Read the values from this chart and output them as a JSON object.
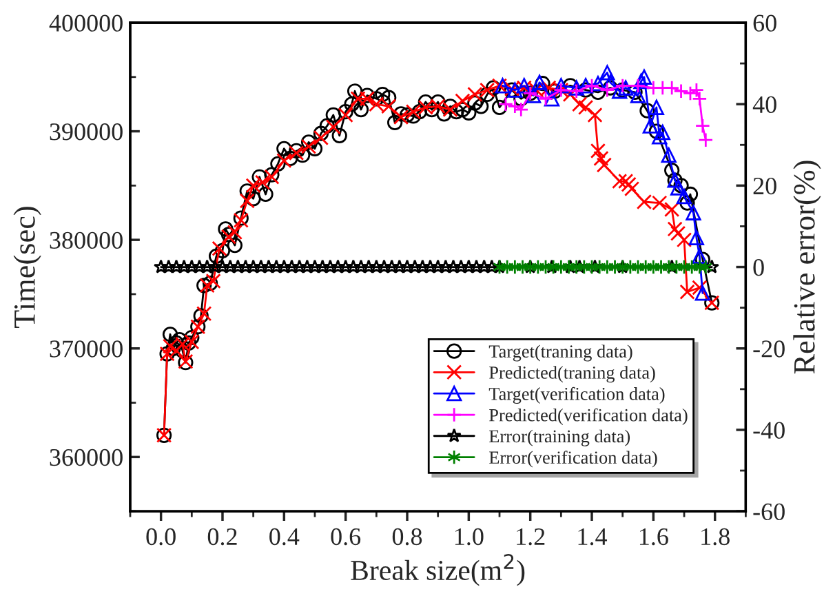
{
  "chart_data": {
    "type": "line",
    "xlabel": "Break size(m$^{2}$)",
    "ylabel": "Time(sec)",
    "y2label": "Relative error(%)",
    "xlim": [
      -0.1,
      1.9
    ],
    "xticks": [
      {
        "value": 0,
        "label": "0.0"
      },
      0.2,
      0.4,
      0.6,
      0.8,
      {
        "value": 1,
        "label": "1.0"
      },
      1.2,
      1.4,
      1.6,
      1.8
    ],
    "ylim": [
      355000,
      400000
    ],
    "yticks": [
      360000,
      370000,
      380000,
      390000,
      400000
    ],
    "y2lim": [
      -60,
      60
    ],
    "y2ticks": [
      -60,
      -40,
      -20,
      0,
      20,
      40,
      60
    ],
    "grid": false,
    "legend": "bottom right",
    "series": [
      {
        "name": "Target(traning data)",
        "color": "#000000",
        "marker": "circle",
        "x": [
          0.01,
          0.02,
          0.03,
          0.04,
          0.05,
          0.06,
          0.07,
          0.08,
          0.09,
          0.1,
          0.12,
          0.13,
          0.14,
          0.16,
          0.18,
          0.2,
          0.21,
          0.22,
          0.24,
          0.26,
          0.28,
          0.3,
          0.32,
          0.34,
          0.36,
          0.38,
          0.4,
          0.42,
          0.44,
          0.46,
          0.48,
          0.5,
          0.52,
          0.54,
          0.56,
          0.58,
          0.6,
          0.62,
          0.63,
          0.65,
          0.67,
          0.7,
          0.72,
          0.74,
          0.76,
          0.78,
          0.8,
          0.82,
          0.84,
          0.86,
          0.88,
          0.9,
          0.92,
          0.94,
          0.96,
          0.98,
          1.0,
          1.02,
          1.04,
          1.06,
          1.08,
          1.1,
          1.14,
          1.17,
          1.2,
          1.24,
          1.28,
          1.33,
          1.38,
          1.42,
          1.46,
          1.5,
          1.54,
          1.58,
          1.61,
          1.66,
          1.67,
          1.69,
          1.71,
          1.72,
          1.76,
          1.79
        ],
        "values": [
          362000,
          369500,
          371300,
          370000,
          370500,
          370800,
          369800,
          368700,
          370500,
          371000,
          372000,
          373000,
          375800,
          376000,
          378500,
          379000,
          381000,
          380500,
          379500,
          382000,
          384500,
          383800,
          385800,
          384200,
          386000,
          387000,
          388400,
          387500,
          388200,
          387800,
          389000,
          388400,
          389800,
          390500,
          391500,
          389600,
          391800,
          392500,
          393700,
          392000,
          393300,
          393000,
          393400,
          393100,
          390800,
          391600,
          391500,
          391400,
          391800,
          392700,
          392000,
          392700,
          391600,
          392300,
          391800,
          392000,
          391700,
          392600,
          392300,
          393400,
          394000,
          392200,
          393800,
          393000,
          393500,
          394400,
          393700,
          394200,
          393800,
          393600,
          394000,
          393800,
          393600,
          391900,
          390000,
          386400,
          385500,
          385000,
          383400,
          384200,
          378200,
          374200
        ]
      },
      {
        "name": "Predicted(traning data)",
        "color": "#ff0000",
        "marker": "x",
        "x": [
          0.01,
          0.02,
          0.03,
          0.05,
          0.07,
          0.08,
          0.1,
          0.12,
          0.14,
          0.15,
          0.17,
          0.19,
          0.22,
          0.24,
          0.26,
          0.28,
          0.3,
          0.33,
          0.36,
          0.4,
          0.44,
          0.48,
          0.52,
          0.56,
          0.6,
          0.64,
          0.67,
          0.7,
          0.74,
          0.78,
          0.82,
          0.86,
          0.9,
          0.94,
          0.98,
          1.02,
          1.06,
          1.1,
          1.14,
          1.18,
          1.22,
          1.26,
          1.3,
          1.33,
          1.36,
          1.38,
          1.41,
          1.42,
          1.43,
          1.44,
          1.49,
          1.51,
          1.52,
          1.53,
          1.57,
          1.62,
          1.66,
          1.67,
          1.68,
          1.7,
          1.71,
          1.75,
          1.79
        ],
        "values": [
          362000,
          369500,
          370200,
          369800,
          370400,
          368800,
          370600,
          372000,
          373200,
          375800,
          376200,
          379200,
          380300,
          380700,
          381800,
          383600,
          385000,
          385300,
          385800,
          387300,
          388000,
          388600,
          389400,
          390400,
          391500,
          393000,
          393000,
          392500,
          392300,
          391300,
          391800,
          392200,
          392300,
          392000,
          392800,
          393400,
          393800,
          394200,
          393900,
          394000,
          393800,
          394000,
          393800,
          393400,
          392500,
          392200,
          391500,
          388200,
          387500,
          386900,
          385400,
          385400,
          385100,
          384700,
          383500,
          383400,
          382800,
          381000,
          380600,
          380000,
          375200,
          375600,
          374200
        ]
      },
      {
        "name": "Target(verification data)",
        "color": "#0000ff",
        "marker": "triangle",
        "x": [
          1.11,
          1.15,
          1.18,
          1.21,
          1.23,
          1.27,
          1.3,
          1.35,
          1.38,
          1.42,
          1.45,
          1.46,
          1.49,
          1.51,
          1.55,
          1.56,
          1.57,
          1.59,
          1.61,
          1.62,
          1.63,
          1.65,
          1.67,
          1.68,
          1.7,
          1.73,
          1.74,
          1.75,
          1.76
        ],
        "values": [
          394200,
          393800,
          394200,
          393300,
          394500,
          393000,
          394200,
          394000,
          394200,
          394400,
          395400,
          394500,
          393700,
          394000,
          393300,
          394600,
          395000,
          390500,
          392200,
          389500,
          389900,
          387800,
          385500,
          384800,
          384000,
          382500,
          380200,
          378500,
          375100
        ]
      },
      {
        "name": "Predicted(verification data)",
        "color": "#ff00ff",
        "marker": "plus",
        "x": [
          1.12,
          1.15,
          1.17,
          1.2,
          1.25,
          1.3,
          1.35,
          1.4,
          1.45,
          1.5,
          1.55,
          1.6,
          1.63,
          1.66,
          1.69,
          1.72,
          1.74,
          1.75,
          1.76,
          1.77
        ],
        "values": [
          392500,
          392300,
          392000,
          393500,
          393000,
          393800,
          393700,
          394200,
          393800,
          394200,
          394200,
          394000,
          394000,
          394000,
          393700,
          393500,
          393800,
          393000,
          390500,
          389200
        ]
      },
      {
        "name": "Error(training data)",
        "color": "#000000",
        "marker": "star",
        "axis": "y2",
        "x": [
          0.0,
          0.025,
          0.05,
          0.075,
          0.1,
          0.125,
          0.15,
          0.175,
          0.2,
          0.225,
          0.25,
          0.275,
          0.3,
          0.325,
          0.35,
          0.375,
          0.4,
          0.425,
          0.45,
          0.475,
          0.5,
          0.525,
          0.55,
          0.575,
          0.6,
          0.625,
          0.65,
          0.675,
          0.7,
          0.725,
          0.75,
          0.775,
          0.8,
          0.825,
          0.85,
          0.875,
          0.9,
          0.925,
          0.95,
          0.975,
          1.0,
          1.025,
          1.05,
          1.075,
          1.1,
          1.2,
          1.27,
          1.33,
          1.36,
          1.41,
          1.5,
          1.66,
          1.79
        ],
        "values": [
          0,
          0,
          0,
          0,
          0,
          0,
          0,
          0,
          0,
          0,
          0,
          0,
          0,
          0,
          0,
          0,
          0,
          0,
          0,
          0,
          0,
          0,
          0,
          0,
          0,
          0,
          0,
          0,
          0,
          0,
          0,
          0,
          0,
          0,
          0,
          0,
          0,
          0,
          0,
          0,
          0,
          0,
          0,
          0,
          0,
          0,
          0,
          0,
          0,
          0,
          0,
          0,
          0
        ]
      },
      {
        "name": "Error(verification data)",
        "color": "#008000",
        "marker": "cross",
        "axis": "y2",
        "x": [
          1.1,
          1.125,
          1.15,
          1.175,
          1.2,
          1.225,
          1.25,
          1.275,
          1.3,
          1.325,
          1.35,
          1.375,
          1.4,
          1.425,
          1.45,
          1.475,
          1.5,
          1.525,
          1.55,
          1.575,
          1.6,
          1.625,
          1.65,
          1.675,
          1.7,
          1.725,
          1.75,
          1.77
        ],
        "values": [
          0,
          0,
          0,
          0,
          0,
          0,
          0,
          0,
          0,
          0,
          0,
          0,
          0,
          0,
          0,
          0,
          0,
          0,
          0,
          0,
          0,
          0,
          0,
          0,
          0,
          0,
          0,
          0
        ]
      }
    ]
  }
}
